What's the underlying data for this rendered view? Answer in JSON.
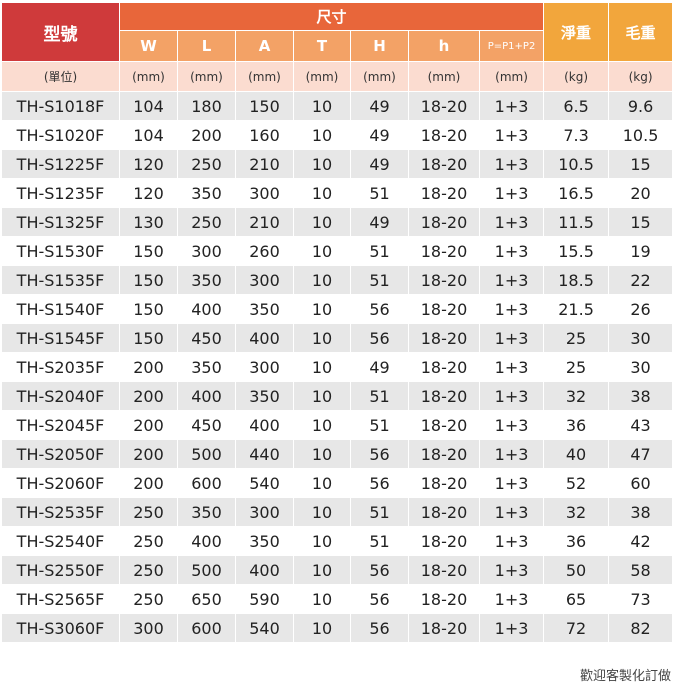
{
  "header": {
    "model_label": "型號",
    "dimensions_label": "尺寸",
    "net_weight_label": "淨重",
    "gross_weight_label": "毛重",
    "dim_columns": [
      "W",
      "L",
      "A",
      "T",
      "H",
      "h",
      "P=P1+P2"
    ]
  },
  "units": [
    "(單位)",
    "(mm)",
    "(mm)",
    "(mm)",
    "(mm)",
    "(mm)",
    "(mm)",
    "(mm)",
    "(kg)",
    "(kg)"
  ],
  "rows": [
    [
      "TH-S1018F",
      "104",
      "180",
      "150",
      "10",
      "49",
      "18-20",
      "1+3",
      "6.5",
      "9.6"
    ],
    [
      "TH-S1020F",
      "104",
      "200",
      "160",
      "10",
      "49",
      "18-20",
      "1+3",
      "7.3",
      "10.5"
    ],
    [
      "TH-S1225F",
      "120",
      "250",
      "210",
      "10",
      "49",
      "18-20",
      "1+3",
      "10.5",
      "15"
    ],
    [
      "TH-S1235F",
      "120",
      "350",
      "300",
      "10",
      "51",
      "18-20",
      "1+3",
      "16.5",
      "20"
    ],
    [
      "TH-S1325F",
      "130",
      "250",
      "210",
      "10",
      "49",
      "18-20",
      "1+3",
      "11.5",
      "15"
    ],
    [
      "TH-S1530F",
      "150",
      "300",
      "260",
      "10",
      "51",
      "18-20",
      "1+3",
      "15.5",
      "19"
    ],
    [
      "TH-S1535F",
      "150",
      "350",
      "300",
      "10",
      "51",
      "18-20",
      "1+3",
      "18.5",
      "22"
    ],
    [
      "TH-S1540F",
      "150",
      "400",
      "350",
      "10",
      "56",
      "18-20",
      "1+3",
      "21.5",
      "26"
    ],
    [
      "TH-S1545F",
      "150",
      "450",
      "400",
      "10",
      "56",
      "18-20",
      "1+3",
      "25",
      "30"
    ],
    [
      "TH-S2035F",
      "200",
      "350",
      "300",
      "10",
      "49",
      "18-20",
      "1+3",
      "25",
      "30"
    ],
    [
      "TH-S2040F",
      "200",
      "400",
      "350",
      "10",
      "51",
      "18-20",
      "1+3",
      "32",
      "38"
    ],
    [
      "TH-S2045F",
      "200",
      "450",
      "400",
      "10",
      "51",
      "18-20",
      "1+3",
      "36",
      "43"
    ],
    [
      "TH-S2050F",
      "200",
      "500",
      "440",
      "10",
      "56",
      "18-20",
      "1+3",
      "40",
      "47"
    ],
    [
      "TH-S2060F",
      "200",
      "600",
      "540",
      "10",
      "56",
      "18-20",
      "1+3",
      "52",
      "60"
    ],
    [
      "TH-S2535F",
      "250",
      "350",
      "300",
      "10",
      "51",
      "18-20",
      "1+3",
      "32",
      "38"
    ],
    [
      "TH-S2540F",
      "250",
      "400",
      "350",
      "10",
      "51",
      "18-20",
      "1+3",
      "36",
      "42"
    ],
    [
      "TH-S2550F",
      "250",
      "500",
      "400",
      "10",
      "56",
      "18-20",
      "1+3",
      "50",
      "58"
    ],
    [
      "TH-S2565F",
      "250",
      "650",
      "590",
      "10",
      "56",
      "18-20",
      "1+3",
      "65",
      "73"
    ],
    [
      "TH-S3060F",
      "300",
      "600",
      "540",
      "10",
      "56",
      "18-20",
      "1+3",
      "72",
      "82"
    ]
  ],
  "footer": {
    "note": "歡迎客製化訂做"
  },
  "colors": {
    "header_red": "#cf3a3b",
    "header_orange": "#e8663a",
    "header_sub": "#f3a266",
    "header_gold": "#f2a63c",
    "unit_row": "#fbdcd0",
    "stripe": "#e7e7e7"
  }
}
